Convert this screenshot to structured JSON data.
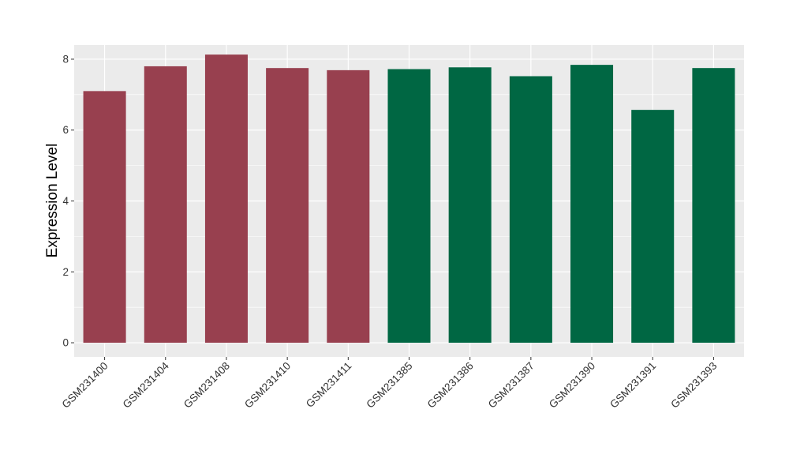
{
  "chart_data": {
    "type": "bar",
    "ylabel": "Expression Level",
    "xlabel": "",
    "ylim": [
      -0.4,
      8.4
    ],
    "yticks": [
      0,
      2,
      4,
      6,
      8
    ],
    "grid": true,
    "legend": "none",
    "colors": {
      "panel_bg": "#EBEBEB",
      "grid_major": "#FFFFFF",
      "group_1": "#98404F",
      "group_2": "#006743"
    },
    "categories": [
      "GSM231400",
      "GSM231404",
      "GSM231408",
      "GSM231410",
      "GSM231411",
      "GSM231385",
      "GSM231386",
      "GSM231387",
      "GSM231390",
      "GSM231391",
      "GSM231393"
    ],
    "values": [
      7.1,
      7.8,
      8.13,
      7.75,
      7.69,
      7.72,
      7.77,
      7.52,
      7.84,
      6.57,
      7.75
    ],
    "groups": [
      1,
      1,
      1,
      1,
      1,
      2,
      2,
      2,
      2,
      2,
      2
    ]
  }
}
